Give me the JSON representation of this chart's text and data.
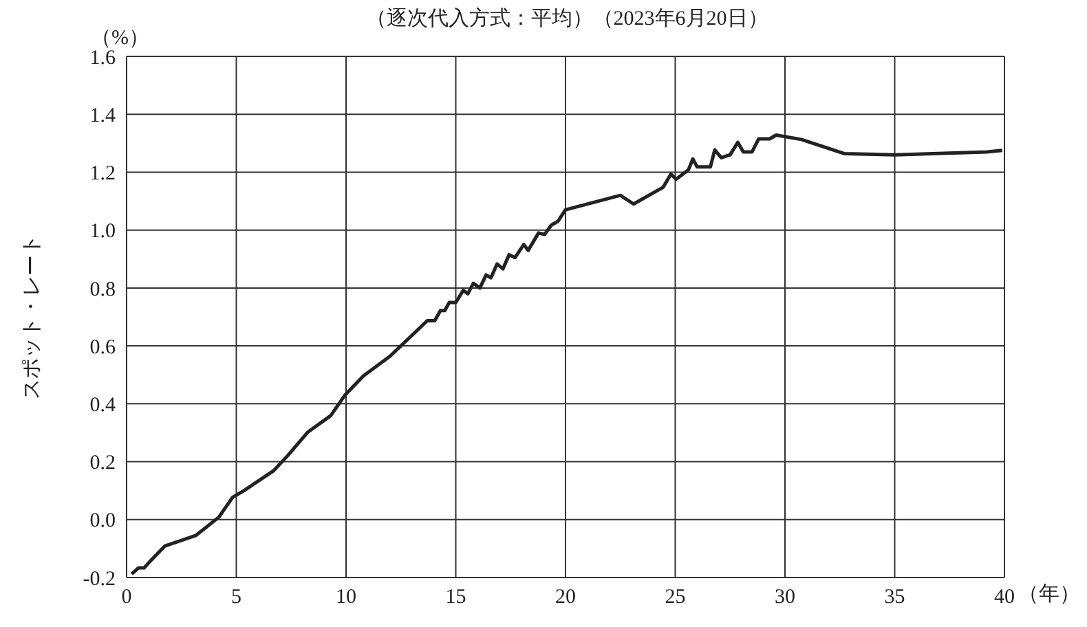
{
  "chart_data": {
    "type": "line",
    "title": "（逐次代入方式：平均）（2023年6月20日）",
    "xlabel": "（年）",
    "ylabel": "スポット・レート",
    "annotations": [
      "（%）"
    ],
    "series": [
      {
        "color": "#222222",
        "x": [
          0.23,
          0.54,
          0.8,
          1.07,
          1.75,
          3.15,
          4.2,
          4.83,
          5.35,
          6.7,
          7.33,
          8.27,
          9.3,
          9.95,
          10.8,
          12.0,
          13.7,
          14.04,
          14.3,
          14.5,
          14.7,
          15.0,
          15.34,
          15.55,
          15.8,
          16.1,
          16.38,
          16.6,
          16.88,
          17.15,
          17.43,
          17.7,
          18.1,
          18.3,
          18.77,
          19.05,
          19.35,
          19.65,
          20.0,
          22.5,
          23.1,
          24.45,
          24.8,
          25.05,
          25.6,
          25.8,
          26.0,
          26.6,
          26.8,
          27.1,
          27.5,
          27.85,
          28.1,
          28.5,
          28.8,
          29.3,
          29.6,
          30.75,
          32.7,
          35.0,
          39.2,
          39.9
        ],
        "values": [
          -0.188,
          -0.167,
          -0.167,
          -0.144,
          -0.091,
          -0.055,
          0.008,
          0.077,
          0.1,
          0.169,
          0.22,
          0.303,
          0.359,
          0.43,
          0.497,
          0.564,
          0.687,
          0.687,
          0.722,
          0.722,
          0.75,
          0.75,
          0.792,
          0.78,
          0.816,
          0.8,
          0.845,
          0.835,
          0.883,
          0.866,
          0.915,
          0.905,
          0.95,
          0.93,
          0.99,
          0.985,
          1.017,
          1.03,
          1.07,
          1.12,
          1.09,
          1.148,
          1.193,
          1.176,
          1.208,
          1.246,
          1.218,
          1.218,
          1.277,
          1.25,
          1.26,
          1.303,
          1.27,
          1.27,
          1.315,
          1.315,
          1.328,
          1.313,
          1.264,
          1.26,
          1.27,
          1.275
        ]
      }
    ],
    "xlim": [
      0,
      40
    ],
    "xticks": [
      0,
      5,
      10,
      15,
      20,
      25,
      30,
      35,
      40
    ],
    "ylim": [
      -0.2,
      1.6
    ],
    "yticks": [
      -0.2,
      {
        "value": 0,
        "label": "0.0"
      },
      0.2,
      0.4,
      0.6,
      0.8,
      {
        "value": 1,
        "label": "1.0"
      },
      1.2,
      1.4,
      1.6
    ],
    "grid": true,
    "marker": "none",
    "line_style": "solid"
  }
}
